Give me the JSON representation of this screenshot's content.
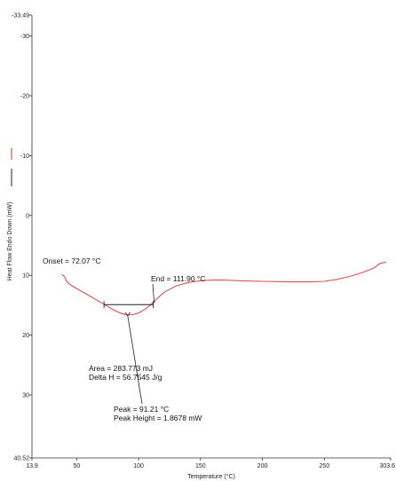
{
  "chart_data": {
    "type": "line",
    "title": "",
    "xlabel": "Temperature (°C)",
    "ylabel": "Heat Flow Endo Down (mW)",
    "xlim": [
      13.9,
      303.6
    ],
    "ylim": [
      -33.49,
      40.52
    ],
    "y_inverted": true,
    "grid": false,
    "x_ticks": [
      {
        "value": 13.9,
        "label": "13.9"
      },
      {
        "value": 50,
        "label": "50"
      },
      {
        "value": 100,
        "label": "100"
      },
      {
        "value": 150,
        "label": "150"
      },
      {
        "value": 200,
        "label": "200"
      },
      {
        "value": 250,
        "label": "250"
      },
      {
        "value": 303.6,
        "label": "303.6"
      }
    ],
    "y_ticks": [
      {
        "value": -33.49,
        "label": "-33.49"
      },
      {
        "value": -30,
        "label": "-30"
      },
      {
        "value": -20,
        "label": "-20"
      },
      {
        "value": -10,
        "label": "-10"
      },
      {
        "value": 0,
        "label": "0"
      },
      {
        "value": 10,
        "label": "10"
      },
      {
        "value": 20,
        "label": "20"
      },
      {
        "value": 30,
        "label": "30"
      },
      {
        "value": 40.52,
        "label": "40.52"
      }
    ],
    "series": [
      {
        "name": "",
        "color": "#e05050",
        "x": [
          38,
          40,
          42,
          45,
          50,
          55,
          60,
          65,
          70,
          75,
          80,
          85,
          90,
          95,
          100,
          105,
          110,
          115,
          120,
          130,
          140,
          150,
          160,
          170,
          180,
          200,
          220,
          240,
          250,
          260,
          270,
          280,
          290,
          295,
          300
        ],
        "y": [
          9.8,
          10.2,
          11.0,
          11.6,
          12.2,
          12.8,
          13.4,
          14.0,
          14.6,
          15.2,
          15.8,
          16.3,
          16.6,
          16.6,
          16.3,
          15.7,
          14.9,
          13.9,
          12.9,
          11.8,
          11.2,
          10.9,
          10.8,
          10.8,
          10.9,
          11.0,
          11.1,
          11.1,
          11.0,
          10.7,
          10.2,
          9.6,
          8.8,
          8.0,
          7.8
        ]
      }
    ],
    "baseline": {
      "x": [
        72.07,
        111.9
      ],
      "y": [
        14.9,
        14.9
      ]
    },
    "annotations": [
      {
        "id": "onset",
        "lines": [
          "Onset = 72.07 °C"
        ],
        "anchor_x": 72.07,
        "anchor_y": 14.9
      },
      {
        "id": "end",
        "lines": [
          "End = 111.90 °C"
        ],
        "anchor_x": 111.9,
        "anchor_y": 14.9
      },
      {
        "id": "area",
        "lines": [
          "Area = 283.773 mJ",
          "Delta H = 56.7545 J/g"
        ]
      },
      {
        "id": "peak",
        "lines": [
          "Peak = 91.21 °C",
          "Peak Height = 1.8678 mW"
        ],
        "anchor_x": 91.21,
        "anchor_y": 16.6
      }
    ]
  }
}
